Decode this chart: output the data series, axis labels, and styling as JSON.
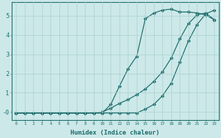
{
  "xlabel": "Humidex (Indice chaleur)",
  "bg_color": "#cce8e8",
  "line_color": "#1a6b6b",
  "grid_color": "#aacfcf",
  "line1_x": [
    0,
    1,
    2,
    3,
    4,
    5,
    6,
    7,
    8,
    9,
    10,
    11,
    12,
    13,
    14,
    15,
    16,
    17,
    18,
    19,
    20,
    21,
    22,
    23
  ],
  "line1_y": [
    -0.05,
    -0.05,
    -0.05,
    -0.05,
    -0.05,
    -0.05,
    -0.05,
    -0.05,
    -0.05,
    -0.05,
    -0.05,
    0.4,
    1.35,
    2.25,
    2.9,
    4.85,
    5.15,
    5.3,
    5.35,
    5.2,
    5.2,
    5.15,
    5.05,
    4.8
  ],
  "line2_x": [
    0,
    1,
    2,
    3,
    4,
    5,
    6,
    7,
    8,
    9,
    10,
    11,
    12,
    13,
    14,
    15,
    16,
    17,
    18,
    19,
    20,
    21,
    22,
    23
  ],
  "line2_y": [
    -0.05,
    -0.05,
    -0.05,
    -0.05,
    -0.05,
    -0.05,
    -0.05,
    -0.05,
    -0.05,
    -0.05,
    0.0,
    0.2,
    0.45,
    0.65,
    0.9,
    1.2,
    1.6,
    2.1,
    2.8,
    3.8,
    4.6,
    5.05,
    5.15,
    4.8
  ],
  "line3_x": [
    0,
    1,
    2,
    3,
    4,
    5,
    6,
    7,
    8,
    9,
    10,
    11,
    12,
    13,
    14,
    15,
    16,
    17,
    18,
    19,
    20,
    21,
    22,
    23
  ],
  "line3_y": [
    -0.05,
    -0.05,
    -0.05,
    -0.05,
    -0.05,
    -0.05,
    -0.05,
    -0.05,
    -0.05,
    -0.05,
    -0.05,
    -0.05,
    -0.05,
    -0.05,
    -0.05,
    0.15,
    0.4,
    0.85,
    1.5,
    2.6,
    3.7,
    4.55,
    5.1,
    5.3
  ],
  "xlim": [
    -0.5,
    23.5
  ],
  "ylim": [
    -0.4,
    5.7
  ],
  "xticks": [
    0,
    1,
    2,
    3,
    4,
    5,
    6,
    7,
    8,
    9,
    10,
    11,
    12,
    13,
    14,
    15,
    16,
    17,
    18,
    19,
    20,
    21,
    22,
    23
  ],
  "yticks": [
    0,
    1,
    2,
    3,
    4,
    5
  ],
  "ytick_labels": [
    "-0",
    "1",
    "2",
    "3",
    "4",
    "5"
  ]
}
